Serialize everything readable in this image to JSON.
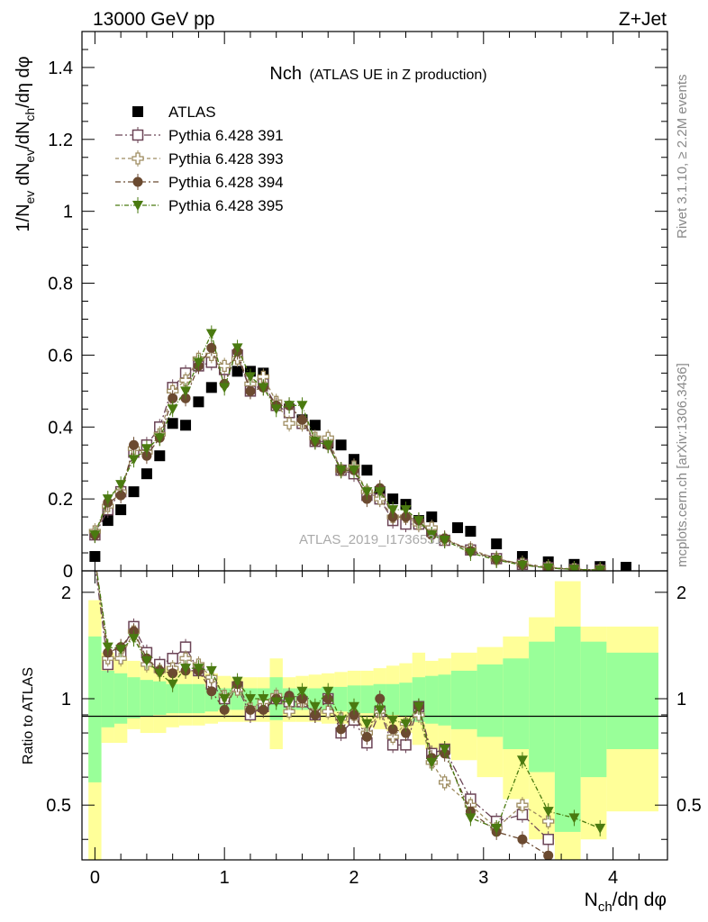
{
  "header": {
    "left": "13000 GeV pp",
    "right": "Z+Jet"
  },
  "side_labels": {
    "rivet": "Rivet 3.1.10, ≥ 2.2M events",
    "mcplots": "mcplots.cern.ch [arXiv:1306.3436]"
  },
  "watermark": "ATLAS_2019_I1736531",
  "colors": {
    "atlas": "#000000",
    "p391": "#6b4456",
    "p393": "#9e8c60",
    "p394": "#6b4a30",
    "p395": "#4a7a10",
    "band_inner": "#99ff99",
    "band_outer": "#ffff99"
  },
  "chart_data": [
    {
      "type": "scatter",
      "panel": "main",
      "title": "Nch",
      "subtitle": "(ATLAS UE in Z production)",
      "xlabel": "N_ch/dη dφ",
      "ylabel": "1/N_ev dN_ev/dN_ch/dη dφ",
      "xlim": [
        -0.1,
        4.42
      ],
      "ylim": [
        0,
        1.5
      ],
      "y_ticks": [
        0,
        0.2,
        0.4,
        0.6,
        0.8,
        1,
        1.2,
        1.4
      ],
      "y_tick_labels": [
        "0",
        "0.2",
        "0.4",
        "0.6",
        "0.8",
        "1",
        "1.2",
        "1.4"
      ],
      "legend_position": "top-left",
      "series": [
        {
          "name": "ATLAS",
          "marker": "square-filled",
          "x": [
            0.0,
            0.1,
            0.2,
            0.3,
            0.4,
            0.5,
            0.6,
            0.7,
            0.8,
            0.9,
            1.0,
            1.1,
            1.2,
            1.3,
            1.4,
            1.5,
            1.6,
            1.7,
            1.8,
            1.9,
            2.0,
            2.1,
            2.2,
            2.3,
            2.4,
            2.5,
            2.6,
            2.8,
            2.9,
            3.1,
            3.3,
            3.5,
            3.7,
            3.9,
            4.1
          ],
          "y": [
            0.04,
            0.14,
            0.17,
            0.22,
            0.27,
            0.32,
            0.41,
            0.405,
            0.47,
            0.51,
            0.56,
            0.555,
            0.555,
            0.55,
            0.46,
            0.45,
            0.42,
            0.405,
            0.355,
            0.35,
            0.31,
            0.28,
            0.22,
            0.2,
            0.185,
            0.14,
            0.15,
            0.12,
            0.11,
            0.075,
            0.04,
            0.025,
            0.018,
            0.012,
            0.01
          ]
        },
        {
          "name": "Pythia 6.428 391",
          "marker": "square-open",
          "x": [
            0.0,
            0.1,
            0.2,
            0.3,
            0.4,
            0.5,
            0.6,
            0.7,
            0.8,
            0.9,
            1.0,
            1.1,
            1.2,
            1.3,
            1.4,
            1.5,
            1.6,
            1.7,
            1.8,
            1.9,
            2.0,
            2.1,
            2.2,
            2.3,
            2.4,
            2.5,
            2.6,
            2.7,
            2.9,
            3.1,
            3.3,
            3.5,
            3.7,
            3.9
          ],
          "y": [
            0.1,
            0.17,
            0.22,
            0.33,
            0.35,
            0.4,
            0.51,
            0.55,
            0.57,
            0.58,
            0.56,
            0.6,
            0.5,
            0.52,
            0.46,
            0.44,
            0.41,
            0.36,
            0.36,
            0.28,
            0.27,
            0.21,
            0.2,
            0.14,
            0.13,
            0.13,
            0.11,
            0.085,
            0.058,
            0.034,
            0.018,
            0.009,
            0.004,
            0.002
          ]
        },
        {
          "name": "Pythia 6.428 393",
          "marker": "cross-open",
          "x": [
            0.0,
            0.1,
            0.2,
            0.3,
            0.4,
            0.5,
            0.6,
            0.7,
            0.8,
            0.9,
            1.0,
            1.1,
            1.2,
            1.3,
            1.4,
            1.5,
            1.6,
            1.7,
            1.8,
            1.9,
            2.0,
            2.1,
            2.2,
            2.3,
            2.4,
            2.5,
            2.6,
            2.7,
            2.9,
            3.1,
            3.3,
            3.5,
            3.7,
            3.9
          ],
          "y": [
            0.11,
            0.18,
            0.22,
            0.34,
            0.33,
            0.38,
            0.5,
            0.53,
            0.59,
            0.6,
            0.57,
            0.59,
            0.52,
            0.54,
            0.47,
            0.41,
            0.41,
            0.37,
            0.37,
            0.28,
            0.29,
            0.22,
            0.2,
            0.15,
            0.15,
            0.13,
            0.12,
            0.087,
            0.06,
            0.033,
            0.02,
            0.01,
            0.005,
            0.002
          ]
        },
        {
          "name": "Pythia 6.428 394",
          "marker": "circle-filled",
          "x": [
            0.0,
            0.1,
            0.2,
            0.3,
            0.4,
            0.5,
            0.6,
            0.7,
            0.8,
            0.9,
            1.0,
            1.1,
            1.2,
            1.3,
            1.4,
            1.5,
            1.6,
            1.7,
            1.8,
            1.9,
            2.0,
            2.1,
            2.2,
            2.3,
            2.4,
            2.5,
            2.6,
            2.7,
            2.9,
            3.1,
            3.3,
            3.5,
            3.7,
            3.9
          ],
          "y": [
            0.1,
            0.19,
            0.21,
            0.35,
            0.32,
            0.37,
            0.48,
            0.48,
            0.57,
            0.62,
            0.52,
            0.61,
            0.5,
            0.51,
            0.46,
            0.46,
            0.42,
            0.36,
            0.35,
            0.28,
            0.28,
            0.2,
            0.23,
            0.15,
            0.15,
            0.14,
            0.1,
            0.09,
            0.055,
            0.032,
            0.017,
            0.008,
            0.004,
            0.002
          ]
        },
        {
          "name": "Pythia 6.428 395",
          "marker": "triangle-down-filled",
          "x": [
            0.0,
            0.1,
            0.2,
            0.3,
            0.4,
            0.5,
            0.6,
            0.7,
            0.8,
            0.9,
            1.0,
            1.1,
            1.2,
            1.3,
            1.4,
            1.5,
            1.6,
            1.7,
            1.8,
            1.9,
            2.0,
            2.1,
            2.2,
            2.3,
            2.4,
            2.5,
            2.6,
            2.7,
            2.9,
            3.1,
            3.3,
            3.5,
            3.7,
            3.9
          ],
          "y": [
            0.1,
            0.2,
            0.24,
            0.31,
            0.34,
            0.37,
            0.45,
            0.5,
            0.58,
            0.66,
            0.51,
            0.62,
            0.54,
            0.51,
            0.45,
            0.46,
            0.46,
            0.36,
            0.35,
            0.28,
            0.28,
            0.22,
            0.22,
            0.17,
            0.17,
            0.14,
            0.1,
            0.085,
            0.05,
            0.03,
            0.016,
            0.008,
            0.004,
            0.002
          ]
        }
      ]
    },
    {
      "type": "line",
      "panel": "ratio",
      "ylabel": "Ratio to ATLAS",
      "xlabel": "N_ch/dη dφ",
      "xlim": [
        -0.1,
        4.42
      ],
      "ylim": [
        0.35,
        2.3
      ],
      "y_log": true,
      "y_ticks": [
        0.5,
        1,
        2
      ],
      "y_tick_labels": [
        "0.5",
        "1",
        "2"
      ],
      "x_ticks": [
        0,
        1,
        2,
        3,
        4
      ],
      "x_tick_labels": [
        "0",
        "1",
        "2",
        "3",
        "4"
      ],
      "bands": {
        "edges": [
          -0.05,
          0.05,
          0.15,
          0.25,
          0.35,
          0.45,
          0.55,
          0.65,
          0.75,
          0.85,
          0.95,
          1.05,
          1.15,
          1.25,
          1.35,
          1.45,
          1.55,
          1.65,
          1.75,
          1.85,
          1.95,
          2.05,
          2.15,
          2.25,
          2.35,
          2.45,
          2.55,
          2.65,
          2.75,
          2.95,
          3.15,
          3.35,
          3.55,
          3.75,
          3.95,
          4.35
        ],
        "inner_up": [
          1.5,
          1.2,
          1.18,
          1.15,
          1.13,
          1.12,
          1.1,
          1.1,
          1.1,
          1.08,
          1.07,
          1.07,
          1.07,
          1.07,
          1.15,
          1.07,
          1.07,
          1.07,
          1.08,
          1.08,
          1.09,
          1.09,
          1.1,
          1.1,
          1.11,
          1.15,
          1.16,
          1.17,
          1.2,
          1.25,
          1.3,
          1.45,
          1.6,
          1.45,
          1.35
        ],
        "inner_dn": [
          0.58,
          0.83,
          0.85,
          0.88,
          0.89,
          0.9,
          0.91,
          0.91,
          0.91,
          0.92,
          0.93,
          0.93,
          0.93,
          0.93,
          0.87,
          0.93,
          0.93,
          0.93,
          0.92,
          0.92,
          0.91,
          0.91,
          0.9,
          0.9,
          0.89,
          0.86,
          0.85,
          0.84,
          0.82,
          0.78,
          0.72,
          0.62,
          0.42,
          0.6,
          0.72
        ],
        "outer_up": [
          1.9,
          1.35,
          1.3,
          1.28,
          1.25,
          1.24,
          1.22,
          1.2,
          1.2,
          1.18,
          1.16,
          1.15,
          1.15,
          1.15,
          1.3,
          1.15,
          1.16,
          1.17,
          1.18,
          1.19,
          1.2,
          1.2,
          1.22,
          1.24,
          1.26,
          1.35,
          1.28,
          1.3,
          1.35,
          1.4,
          1.5,
          1.7,
          2.15,
          1.6,
          1.6
        ],
        "outer_dn": [
          0.3,
          0.75,
          0.75,
          0.82,
          0.8,
          0.8,
          0.83,
          0.84,
          0.84,
          0.85,
          0.86,
          0.86,
          0.86,
          0.86,
          0.72,
          0.86,
          0.86,
          0.86,
          0.85,
          0.85,
          0.84,
          0.83,
          0.82,
          0.81,
          0.8,
          0.74,
          0.72,
          0.7,
          0.67,
          0.6,
          0.52,
          0.4,
          0.3,
          0.4,
          0.48
        ]
      },
      "series": [
        {
          "name": "Pythia 6.428 391",
          "x": [
            0.0,
            0.1,
            0.2,
            0.3,
            0.4,
            0.5,
            0.6,
            0.7,
            0.8,
            0.9,
            1.0,
            1.1,
            1.2,
            1.3,
            1.4,
            1.5,
            1.6,
            1.7,
            1.8,
            1.9,
            2.0,
            2.1,
            2.2,
            2.3,
            2.4,
            2.5,
            2.6,
            2.7,
            2.9,
            3.1,
            3.3,
            3.5
          ],
          "y": [
            2.4,
            1.25,
            1.35,
            1.6,
            1.35,
            1.25,
            1.3,
            1.4,
            1.2,
            1.1,
            1.0,
            1.08,
            0.9,
            0.95,
            1.0,
            0.98,
            0.98,
            0.9,
            1.0,
            0.8,
            0.87,
            0.75,
            0.92,
            0.74,
            0.74,
            0.95,
            0.7,
            0.72,
            0.52,
            0.45,
            0.47,
            0.4
          ]
        },
        {
          "name": "Pythia 6.428 393",
          "x": [
            0.0,
            0.1,
            0.2,
            0.3,
            0.4,
            0.5,
            0.6,
            0.7,
            0.8,
            0.9,
            1.0,
            1.1,
            1.2,
            1.3,
            1.4,
            1.5,
            1.6,
            1.7,
            1.8,
            1.9,
            2.0,
            2.1,
            2.2,
            2.3,
            2.4,
            2.5,
            2.6,
            2.7,
            2.9,
            3.1,
            3.3,
            3.5
          ],
          "y": [
            2.5,
            1.3,
            1.3,
            1.55,
            1.25,
            1.2,
            1.22,
            1.3,
            1.25,
            1.15,
            1.02,
            1.06,
            0.94,
            0.98,
            1.02,
            0.92,
            0.98,
            0.92,
            0.92,
            0.88,
            0.9,
            0.8,
            0.92,
            0.78,
            0.85,
            0.9,
            0.66,
            0.58,
            0.5,
            0.43,
            0.5,
            0.45
          ]
        },
        {
          "name": "Pythia 6.428 394",
          "x": [
            0.0,
            0.1,
            0.2,
            0.3,
            0.4,
            0.5,
            0.6,
            0.7,
            0.8,
            0.9,
            1.0,
            1.1,
            1.2,
            1.3,
            1.4,
            1.5,
            1.6,
            1.7,
            1.8,
            1.9,
            2.0,
            2.1,
            2.2,
            2.3,
            2.4,
            2.5,
            2.6,
            2.7,
            2.9,
            3.1,
            3.3,
            3.5
          ],
          "y": [
            2.5,
            1.35,
            1.4,
            1.55,
            1.3,
            1.2,
            1.18,
            1.2,
            1.2,
            1.05,
            0.93,
            1.1,
            0.93,
            0.93,
            1.0,
            1.02,
            1.0,
            0.9,
            1.0,
            0.82,
            0.9,
            0.78,
            1.0,
            0.82,
            0.8,
            0.95,
            0.68,
            0.7,
            0.48,
            0.42,
            0.4,
            0.36
          ]
        },
        {
          "name": "Pythia 6.428 395",
          "x": [
            0.0,
            0.1,
            0.2,
            0.3,
            0.4,
            0.5,
            0.6,
            0.7,
            0.8,
            0.9,
            1.0,
            1.1,
            1.2,
            1.3,
            1.4,
            1.5,
            1.6,
            1.7,
            1.8,
            1.9,
            2.0,
            2.1,
            2.2,
            2.3,
            2.4,
            2.5,
            2.6,
            2.7,
            2.9,
            3.1,
            3.3,
            3.5,
            3.7,
            3.9
          ],
          "y": [
            2.5,
            1.4,
            1.38,
            1.48,
            1.28,
            1.18,
            1.1,
            1.22,
            1.22,
            1.2,
            1.0,
            1.12,
            1.0,
            1.0,
            0.98,
            0.98,
            1.05,
            0.95,
            1.05,
            0.87,
            0.95,
            0.85,
            0.93,
            0.87,
            0.85,
            0.95,
            0.66,
            0.72,
            0.46,
            0.43,
            0.67,
            0.48,
            0.46,
            0.43
          ]
        }
      ]
    }
  ]
}
